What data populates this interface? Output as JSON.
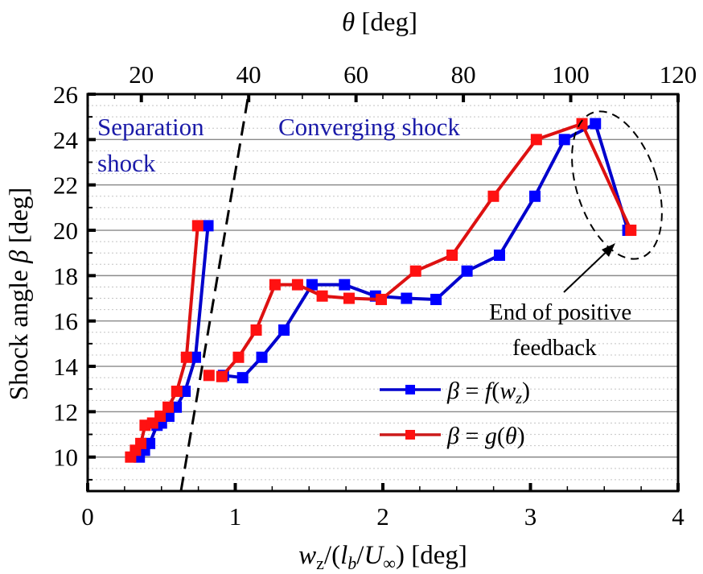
{
  "chart_data": {
    "type": "line",
    "ylabel": "Shock angle β [deg]",
    "xlabel": "w_z/(l_b/U∞) [deg]",
    "x2label": "θ [deg]",
    "xlim": [
      0,
      4
    ],
    "x2lim": [
      10,
      120
    ],
    "ylim": [
      8.5,
      26
    ],
    "xticks": [
      0,
      1,
      2,
      3,
      4
    ],
    "x2ticks": [
      20,
      40,
      60,
      80,
      100,
      120
    ],
    "yticks": [
      10,
      12,
      14,
      16,
      18,
      20,
      22,
      24,
      26
    ],
    "grid": "major solid gray, minor dotted every 0.5",
    "legend_position": "lower-right-center",
    "colors": {
      "f": "#0000cc",
      "g": "#dd1111",
      "guide": "#000000"
    },
    "series": [
      {
        "name": "β = f(w_z)",
        "axis": "bottom",
        "color": "#0000cc",
        "segments": [
          [
            [
              0.35,
              10.0
            ],
            [
              0.385,
              10.3
            ],
            [
              0.42,
              10.6
            ],
            [
              0.47,
              11.4
            ],
            [
              0.5,
              11.5
            ],
            [
              0.55,
              11.8
            ],
            [
              0.6,
              12.2
            ],
            [
              0.66,
              12.9
            ],
            [
              0.73,
              14.4
            ],
            [
              0.815,
              20.2
            ]
          ],
          [
            [
              0.92,
              13.6
            ],
            [
              1.05,
              13.5
            ],
            [
              1.18,
              14.4
            ],
            [
              1.33,
              15.6
            ],
            [
              1.52,
              17.6
            ],
            [
              1.74,
              17.6
            ],
            [
              1.95,
              17.1
            ],
            [
              2.16,
              17.0
            ],
            [
              2.36,
              16.95
            ],
            [
              2.57,
              18.2
            ],
            [
              2.79,
              18.9
            ],
            [
              3.03,
              21.5
            ],
            [
              3.23,
              24.0
            ],
            [
              3.44,
              24.7
            ],
            [
              3.66,
              20.0
            ]
          ]
        ]
      },
      {
        "name": "β = g(θ)",
        "axis": "top",
        "color": "#dd1111",
        "segments": [
          [
            [
              18.0,
              10.0
            ],
            [
              18.9,
              10.3
            ],
            [
              19.9,
              10.6
            ],
            [
              20.7,
              11.4
            ],
            [
              22.1,
              11.5
            ],
            [
              23.5,
              11.8
            ],
            [
              25.0,
              12.2
            ],
            [
              26.6,
              12.9
            ],
            [
              28.4,
              14.4
            ],
            [
              30.5,
              20.2
            ]
          ],
          [
            [
              32.6,
              13.6
            ]
          ],
          [
            [
              35.0,
              13.55
            ],
            [
              38.1,
              14.4
            ],
            [
              41.4,
              15.6
            ],
            [
              44.9,
              17.6
            ],
            [
              49.1,
              17.6
            ],
            [
              53.7,
              17.1
            ],
            [
              58.7,
              17.0
            ],
            [
              64.7,
              16.95
            ],
            [
              71.1,
              18.2
            ],
            [
              77.9,
              18.9
            ],
            [
              85.6,
              21.5
            ],
            [
              93.6,
              24.0
            ],
            [
              102.1,
              24.7
            ],
            [
              111.2,
              20.0
            ]
          ]
        ]
      }
    ],
    "guide_line": {
      "style": "dashed",
      "from": [
        0.632,
        8.5
      ],
      "to": [
        1.09,
        26
      ]
    },
    "annotations": [
      {
        "text": "Separation",
        "color": "#1a1aa8"
      },
      {
        "text": "shock",
        "color": "#1a1aa8"
      },
      {
        "text": "Converging shock",
        "color": "#1a1aa8"
      },
      {
        "text": "End of positive",
        "color": "#000000"
      },
      {
        "text": "feedback",
        "color": "#000000"
      }
    ],
    "highlight": {
      "shape": "dashed ellipse",
      "around": "last two points of both series (β peak and drop to 20)"
    }
  }
}
